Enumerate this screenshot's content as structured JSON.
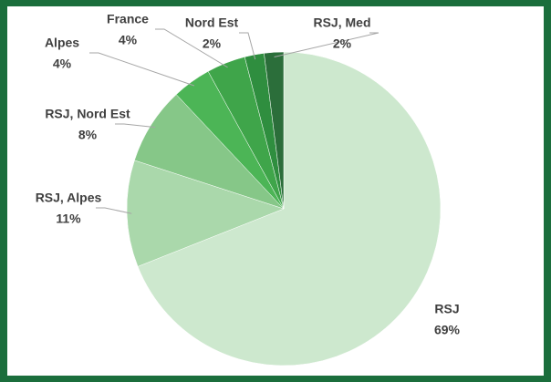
{
  "chart_data": {
    "type": "pie",
    "categories": [
      "RSJ",
      "RSJ, Alpes",
      "RSJ, Nord Est",
      "Alpes",
      "France",
      "Nord Est",
      "RSJ, Med"
    ],
    "values": [
      69,
      11,
      8,
      4,
      4,
      2,
      2
    ],
    "value_labels": [
      "69%",
      "11%",
      "8%",
      "4%",
      "4%",
      "2%",
      "2%"
    ],
    "colors": [
      "#cde8ce",
      "#aad8ab",
      "#86c788",
      "#4cb556",
      "#3fa54a",
      "#2f8e3f",
      "#2b6e3a"
    ]
  }
}
